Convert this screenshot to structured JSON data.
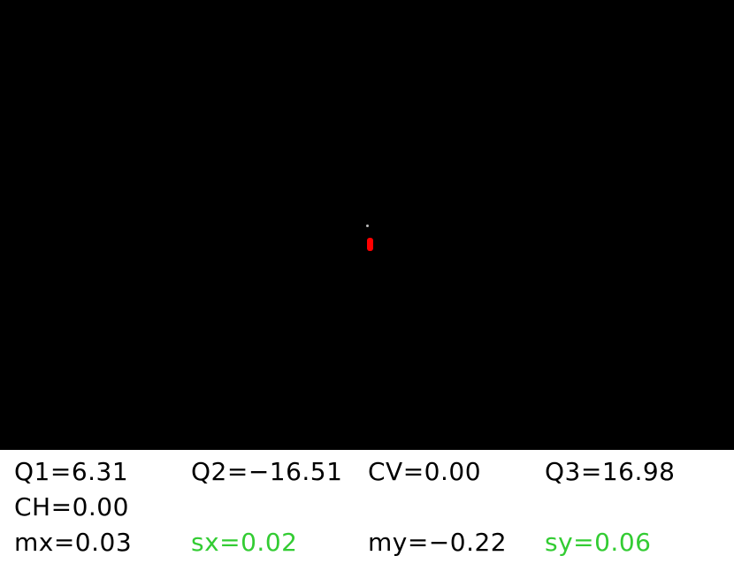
{
  "colors": {
    "viewport_background": "#000000",
    "beam_spot": "#ff0000",
    "marker": "#bdbdbd",
    "readout_text": "#000000",
    "readout_highlight": "#33cc33"
  },
  "readout": {
    "rows": [
      [
        {
          "text": "Q1=6.31",
          "color": "#000000"
        },
        {
          "text": "Q2=−16.51",
          "color": "#000000"
        },
        {
          "text": "CV=0.00",
          "color": "#000000"
        },
        {
          "text": "Q3=16.98",
          "color": "#000000"
        }
      ],
      [
        {
          "text": "CH=0.00",
          "color": "#000000"
        }
      ],
      [
        {
          "text": "mx=0.03",
          "color": "#000000"
        },
        {
          "text": "sx=0.02",
          "color": "#33cc33"
        },
        {
          "text": "my=−0.22",
          "color": "#000000"
        },
        {
          "text": "sy=0.06",
          "color": "#33cc33"
        }
      ]
    ]
  }
}
